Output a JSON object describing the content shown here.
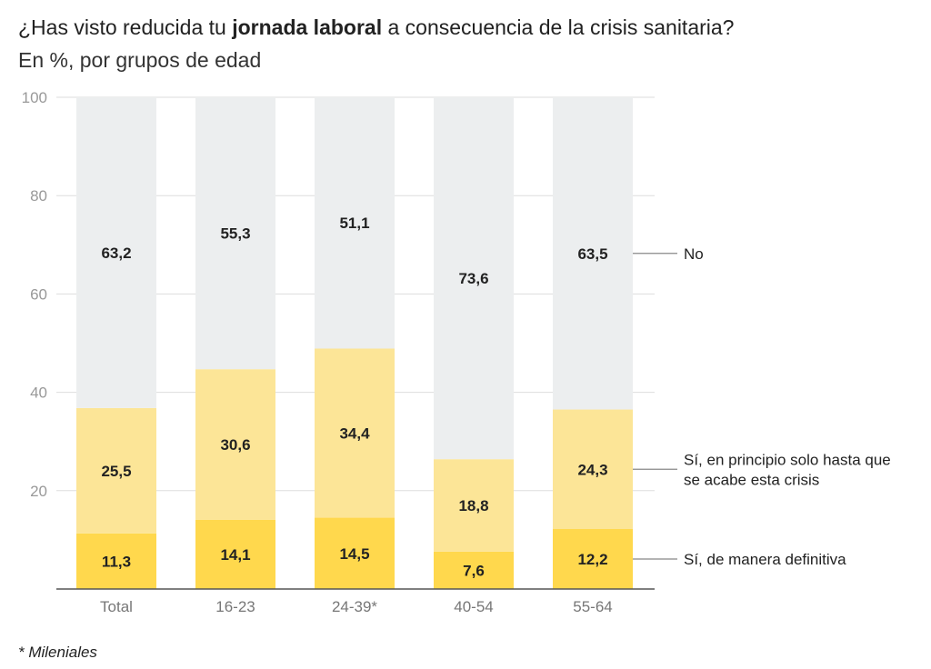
{
  "header": {
    "title_pre": "¿Has visto reducida tu ",
    "title_bold": "jornada laboral",
    "title_post": " a consecuencia de la crisis sanitaria?",
    "subtitle": "En %, por grupos de edad"
  },
  "footnote": "* Mileniales",
  "colors": {
    "definitiva": "#FFD84D",
    "temporal": "#FCE597",
    "no": "#ECEEEF",
    "axis": "#555555",
    "grid": "#DDDDDD",
    "tick_text": "#999999",
    "value_text": "#222222"
  },
  "chart_data": {
    "type": "bar",
    "stacked": true,
    "categories": [
      "Total",
      "16-23",
      "24-39*",
      "40-54",
      "55-64"
    ],
    "series": [
      {
        "name": "Sí, de manera definitiva",
        "values": [
          11.3,
          14.1,
          14.5,
          7.6,
          12.2
        ],
        "labels": [
          "11,3",
          "14,1",
          "14,5",
          "7,6",
          "12,2"
        ]
      },
      {
        "name": "Sí, en principio solo hasta que se acabe esta crisis",
        "values": [
          25.5,
          30.6,
          34.4,
          18.8,
          24.3
        ],
        "labels": [
          "25,5",
          "30,6",
          "34,4",
          "18,8",
          "24,3"
        ]
      },
      {
        "name": "No",
        "values": [
          63.2,
          55.3,
          51.1,
          73.6,
          63.5
        ],
        "labels": [
          "63,2",
          "55,3",
          "51,1",
          "73,6",
          "63,5"
        ]
      }
    ],
    "legend_lines": [
      [
        "Sí, de manera definitiva"
      ],
      [
        "Sí, en principio solo hasta que",
        "se acabe esta crisis"
      ],
      [
        "No"
      ]
    ],
    "ylim": [
      0,
      100
    ],
    "yticks": [
      20,
      40,
      60,
      80,
      100
    ],
    "grid": true,
    "legend_placement": "right, inline labels"
  }
}
